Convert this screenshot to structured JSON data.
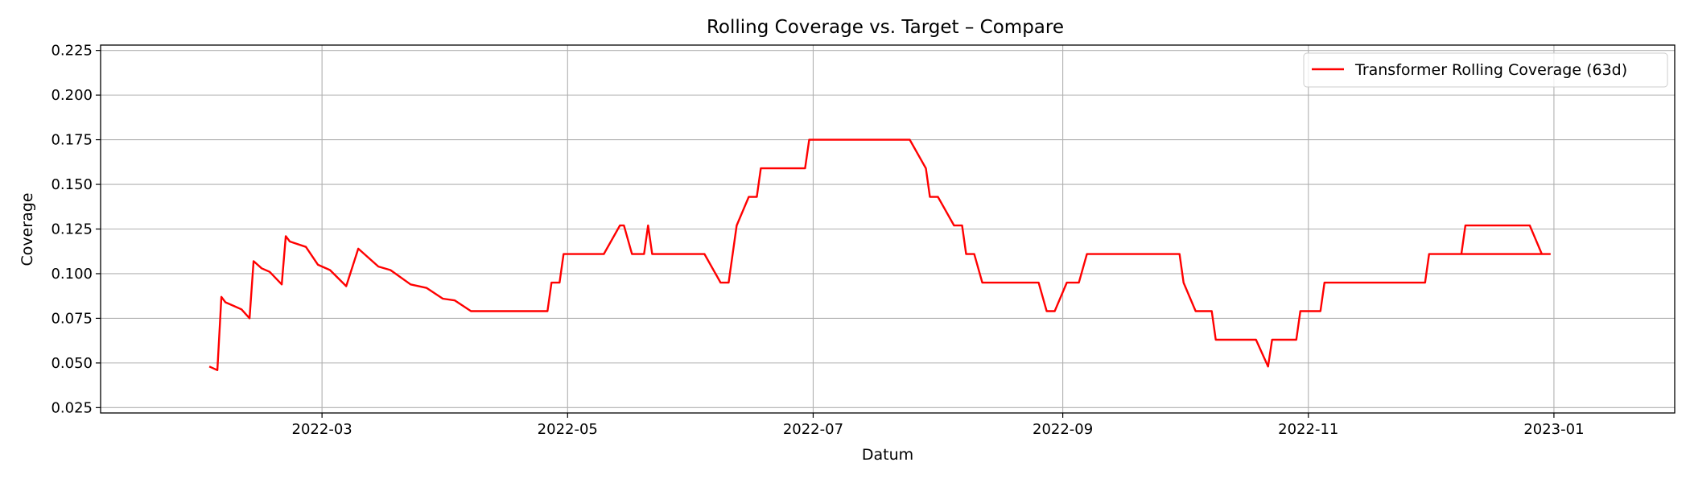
{
  "chart_data": {
    "type": "line",
    "title": "Rolling Coverage vs. Target – Compare",
    "xlabel": "Datum",
    "ylabel": "Coverage",
    "xlim": [
      "2022-01-05",
      "2023-01-31"
    ],
    "ylim": [
      0.022,
      0.228
    ],
    "grid": true,
    "legend_position": "top-right",
    "x_ticks": [
      "2022-03-01",
      "2022-05-01",
      "2022-07-01",
      "2022-09-01",
      "2022-11-01",
      "2023-01-01"
    ],
    "x_tick_labels": [
      "2022-03",
      "2022-05",
      "2022-07",
      "2022-09",
      "2022-11",
      "2023-01"
    ],
    "y_ticks": [
      0.025,
      0.05,
      0.075,
      0.1,
      0.125,
      0.15,
      0.175,
      0.2,
      0.225
    ],
    "y_tick_labels": [
      "0.025",
      "0.050",
      "0.075",
      "0.100",
      "0.125",
      "0.150",
      "0.175",
      "0.200",
      "0.225"
    ],
    "series": [
      {
        "name": "Transformer Rolling Coverage (63d)",
        "color": "#ff0000",
        "style": "solid",
        "points": [
          [
            "2022-02-01",
            0.048
          ],
          [
            "2022-02-03",
            0.046
          ],
          [
            "2022-02-04",
            0.087
          ],
          [
            "2022-02-05",
            0.084
          ],
          [
            "2022-02-07",
            0.082
          ],
          [
            "2022-02-09",
            0.08
          ],
          [
            "2022-02-11",
            0.075
          ],
          [
            "2022-02-12",
            0.107
          ],
          [
            "2022-02-14",
            0.103
          ],
          [
            "2022-02-16",
            0.101
          ],
          [
            "2022-02-19",
            0.094
          ],
          [
            "2022-02-20",
            0.121
          ],
          [
            "2022-02-21",
            0.118
          ],
          [
            "2022-02-25",
            0.115
          ],
          [
            "2022-02-28",
            0.105
          ],
          [
            "2022-03-03",
            0.102
          ],
          [
            "2022-03-07",
            0.093
          ],
          [
            "2022-03-10",
            0.114
          ],
          [
            "2022-03-15",
            0.104
          ],
          [
            "2022-03-18",
            0.102
          ],
          [
            "2022-03-23",
            0.094
          ],
          [
            "2022-03-27",
            0.092
          ],
          [
            "2022-03-31",
            0.086
          ],
          [
            "2022-04-03",
            0.085
          ],
          [
            "2022-04-07",
            0.079
          ],
          [
            "2022-04-26",
            0.079
          ],
          [
            "2022-04-27",
            0.095
          ],
          [
            "2022-04-29",
            0.095
          ],
          [
            "2022-04-30",
            0.111
          ],
          [
            "2022-05-10",
            0.111
          ],
          [
            "2022-05-14",
            0.127
          ],
          [
            "2022-05-15",
            0.127
          ],
          [
            "2022-05-17",
            0.111
          ],
          [
            "2022-05-20",
            0.111
          ],
          [
            "2022-05-21",
            0.127
          ],
          [
            "2022-05-22",
            0.111
          ],
          [
            "2022-06-04",
            0.111
          ],
          [
            "2022-06-08",
            0.095
          ],
          [
            "2022-06-10",
            0.095
          ],
          [
            "2022-06-12",
            0.127
          ],
          [
            "2022-06-15",
            0.143
          ],
          [
            "2022-06-17",
            0.143
          ],
          [
            "2022-06-18",
            0.159
          ],
          [
            "2022-06-24",
            0.159
          ],
          [
            "2022-06-29",
            0.159
          ],
          [
            "2022-06-30",
            0.175
          ],
          [
            "2022-07-25",
            0.175
          ],
          [
            "2022-07-29",
            0.159
          ],
          [
            "2022-07-30",
            0.143
          ],
          [
            "2022-08-01",
            0.143
          ],
          [
            "2022-08-05",
            0.127
          ],
          [
            "2022-08-07",
            0.127
          ],
          [
            "2022-08-08",
            0.111
          ],
          [
            "2022-08-10",
            0.111
          ],
          [
            "2022-08-12",
            0.095
          ],
          [
            "2022-08-26",
            0.095
          ],
          [
            "2022-08-28",
            0.079
          ],
          [
            "2022-08-30",
            0.079
          ],
          [
            "2022-09-02",
            0.095
          ],
          [
            "2022-09-05",
            0.095
          ],
          [
            "2022-09-07",
            0.111
          ],
          [
            "2022-09-30",
            0.111
          ],
          [
            "2022-10-01",
            0.095
          ],
          [
            "2022-10-04",
            0.079
          ],
          [
            "2022-10-08",
            0.079
          ],
          [
            "2022-10-09",
            0.063
          ],
          [
            "2022-10-19",
            0.063
          ],
          [
            "2022-10-22",
            0.048
          ],
          [
            "2022-10-23",
            0.063
          ],
          [
            "2022-10-29",
            0.063
          ],
          [
            "2022-10-30",
            0.079
          ],
          [
            "2022-11-04",
            0.079
          ],
          [
            "2022-11-05",
            0.095
          ],
          [
            "2022-11-30",
            0.095
          ],
          [
            "2022-12-01",
            0.111
          ],
          [
            "2022-12-09",
            0.111
          ],
          [
            "2022-12-10",
            0.127
          ],
          [
            "2022-12-26",
            0.127
          ],
          [
            "2022-12-29",
            0.111
          ],
          [
            "2022-12-31",
            0.111
          ],
          [
            "2022-12-02",
            0.111
          ]
        ]
      }
    ]
  }
}
